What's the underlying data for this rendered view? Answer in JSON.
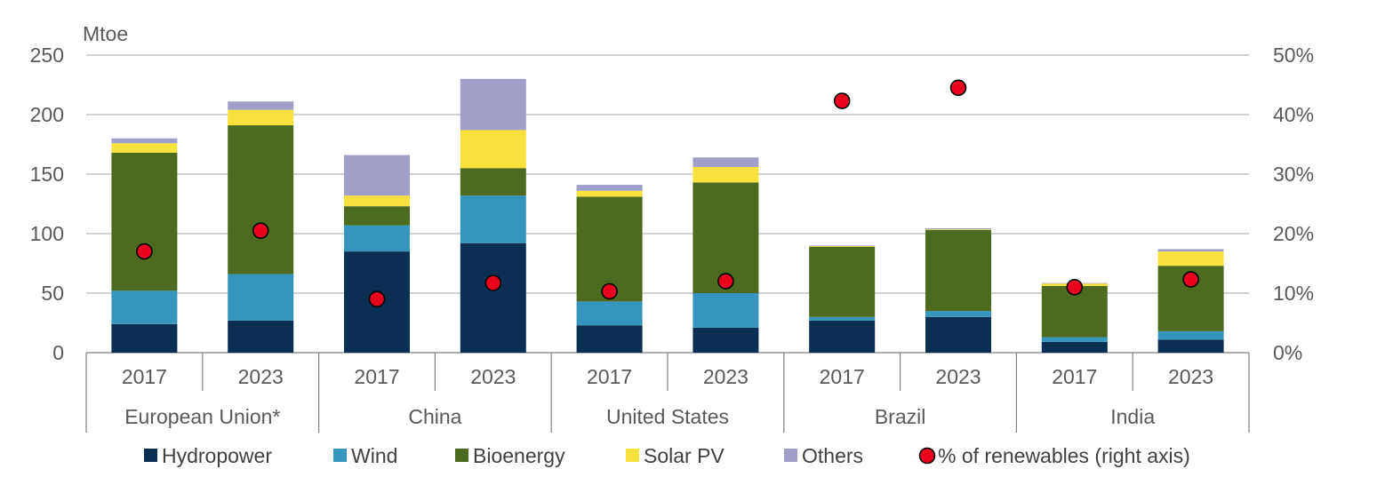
{
  "chart_data": {
    "type": "bar",
    "subtype": "stacked-bar-with-dots",
    "unit_label": "Mtoe",
    "y_left": {
      "ticks": [
        "0",
        "50",
        "100",
        "150",
        "200",
        "250"
      ],
      "ylim": [
        0,
        250
      ]
    },
    "y_right": {
      "ticks": [
        "0%",
        "10%",
        "20%",
        "30%",
        "40%",
        "50%"
      ],
      "ylim": [
        0,
        50
      ]
    },
    "grid": true,
    "legend_position": "bottom",
    "groups": [
      {
        "label": "European Union*",
        "categories": [
          "2017",
          "2023"
        ]
      },
      {
        "label": "China",
        "categories": [
          "2017",
          "2023"
        ]
      },
      {
        "label": "United States",
        "categories": [
          "2017",
          "2023"
        ]
      },
      {
        "label": "Brazil",
        "categories": [
          "2017",
          "2023"
        ]
      },
      {
        "label": "India",
        "categories": [
          "2017",
          "2023"
        ]
      }
    ],
    "series": [
      {
        "name": "Hydropower",
        "color": "#0a2f52",
        "values": [
          24,
          27,
          85,
          92,
          23,
          21,
          27,
          30,
          9,
          11
        ]
      },
      {
        "name": "Wind",
        "color": "#3595be",
        "values": [
          28,
          39,
          22,
          40,
          20,
          29,
          3,
          5,
          4,
          7
        ]
      },
      {
        "name": "Bioenergy",
        "color": "#4c6b1e",
        "values": [
          116,
          125,
          16,
          23,
          88,
          93,
          59,
          68,
          43,
          55
        ]
      },
      {
        "name": "Solar PV",
        "color": "#f7e23d",
        "values": [
          8,
          13,
          9,
          32,
          5,
          13,
          0.5,
          0.5,
          2,
          12
        ]
      },
      {
        "name": "Others",
        "color": "#a09fca",
        "values": [
          4,
          7,
          34,
          43,
          5,
          8,
          0.5,
          1,
          0.5,
          2
        ]
      }
    ],
    "dots": {
      "name": "% of renewables (right axis)",
      "color": "#e8001c",
      "values": [
        17,
        20.5,
        9,
        11.7,
        10.3,
        12,
        42.3,
        44.5,
        11,
        12.3
      ]
    }
  }
}
